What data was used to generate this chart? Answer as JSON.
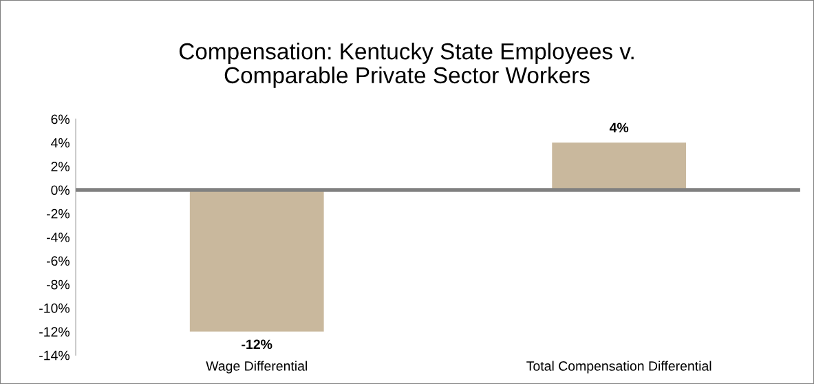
{
  "chart_data": {
    "type": "bar",
    "title": "Compensation: Kentucky State Employees v.\nComparable Private Sector Workers",
    "categories": [
      "Wage Differential",
      "Total Compensation Differential"
    ],
    "values": [
      -12,
      4
    ],
    "value_labels": [
      "-12%",
      "4%"
    ],
    "color": "#c9b89d",
    "ylim": [
      -14,
      6
    ],
    "yticks": [
      {
        "value": -14,
        "label": "-14%"
      },
      {
        "value": -12,
        "label": "-12%"
      },
      {
        "value": -10,
        "label": "-10%"
      },
      {
        "value": -8,
        "label": "-8%"
      },
      {
        "value": -6,
        "label": "-6%"
      },
      {
        "value": -4,
        "label": "-4%"
      },
      {
        "value": -2,
        "label": "-2%"
      },
      {
        "value": 0,
        "label": "0%"
      },
      {
        "value": 2,
        "label": "2%"
      },
      {
        "value": 4,
        "label": "4%"
      },
      {
        "value": 6,
        "label": "6%"
      }
    ],
    "ref_lines": [
      {
        "axis": "y",
        "value": 0,
        "color": "#808080"
      }
    ],
    "legend": false
  }
}
